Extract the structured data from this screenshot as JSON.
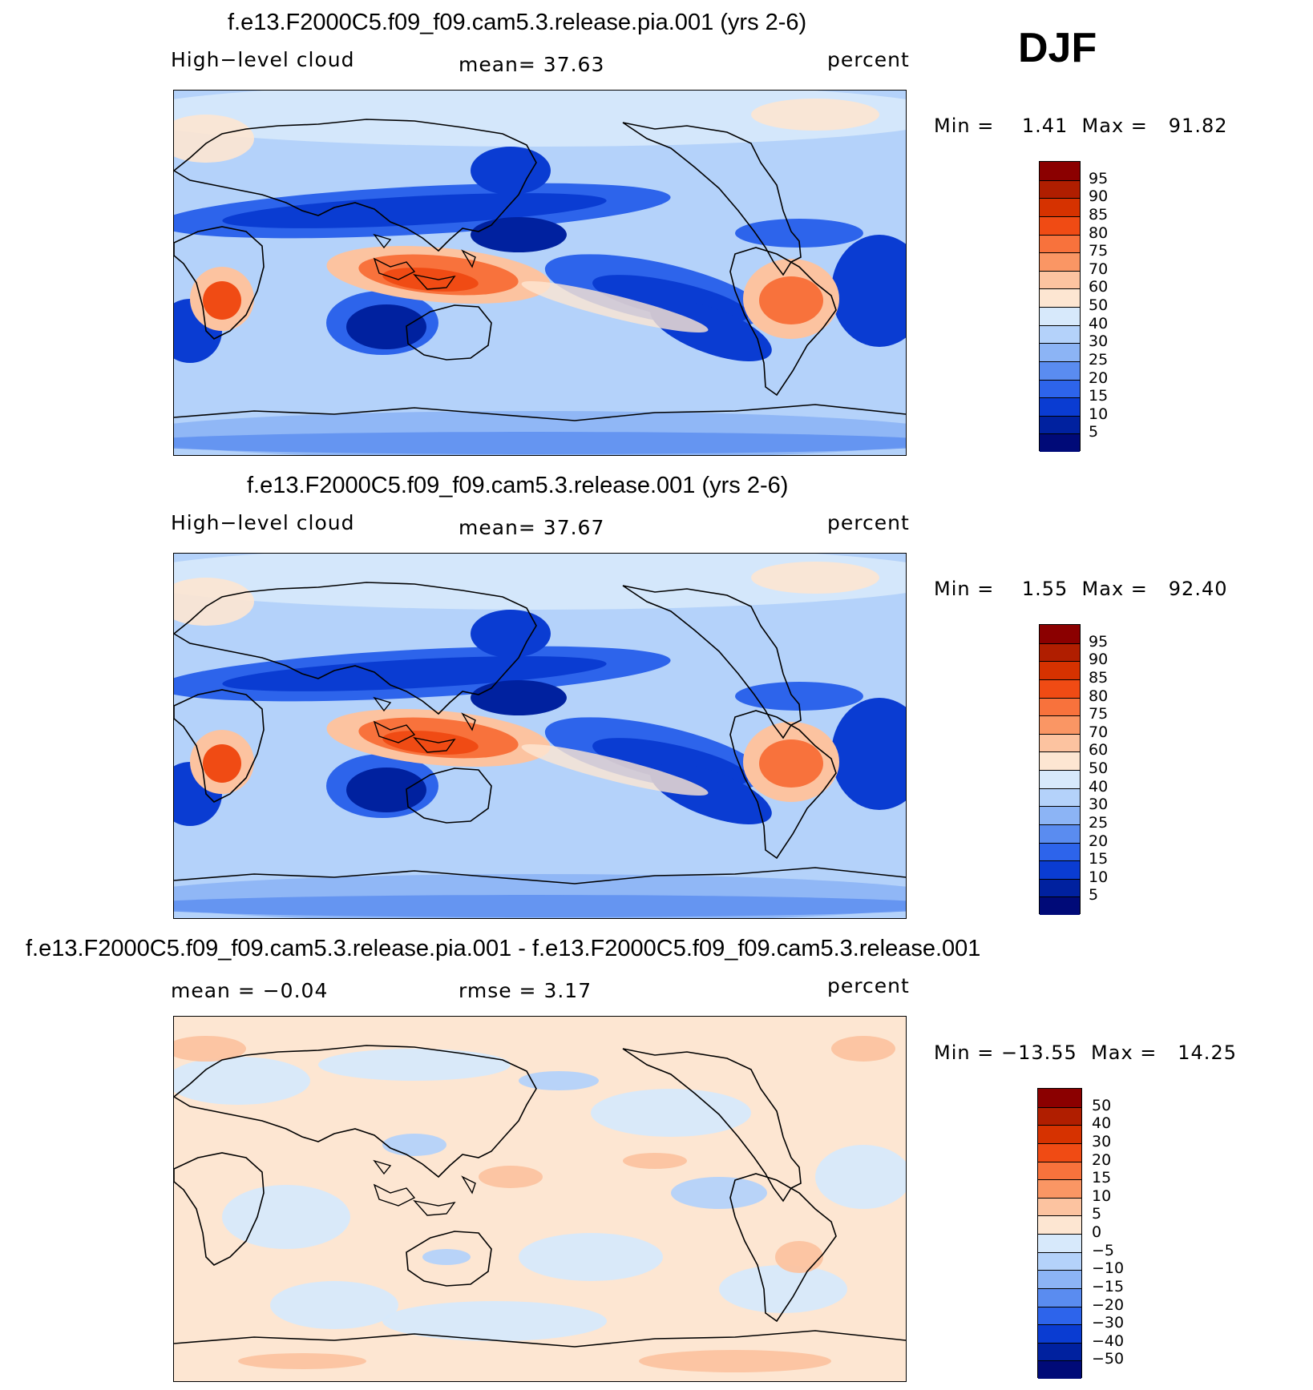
{
  "season": "DJF",
  "panels": [
    {
      "title": "f.e13.F2000C5.f09_f09.cam5.3.release.pia.001 (yrs 2-6)",
      "left_label": "High−level cloud",
      "mid_label": "mean=   37.63",
      "right_label": "percent",
      "minmax": "Min =    1.41  Max =   91.82",
      "colorbar": {
        "labels": [
          "95",
          "90",
          "85",
          "80",
          "75",
          "70",
          "60",
          "50",
          "40",
          "30",
          "25",
          "20",
          "15",
          "10",
          "5"
        ],
        "colors": [
          "#8b0000",
          "#b01e00",
          "#d63200",
          "#f04b14",
          "#f8723c",
          "#fa9664",
          "#fcc3a0",
          "#fde6d2",
          "#d7e9fb",
          "#b4d2fa",
          "#8cb4f5",
          "#5a8cf0",
          "#2d64eb",
          "#0a3cd2",
          "#00219f",
          "#000a78"
        ]
      }
    },
    {
      "title": "f.e13.F2000C5.f09_f09.cam5.3.release.001 (yrs 2-6)",
      "left_label": "High−level cloud",
      "mid_label": "mean=   37.67",
      "right_label": "percent",
      "minmax": "Min =    1.55  Max =   92.40",
      "colorbar": {
        "labels": [
          "95",
          "90",
          "85",
          "80",
          "75",
          "70",
          "60",
          "50",
          "40",
          "30",
          "25",
          "20",
          "15",
          "10",
          "5"
        ],
        "colors": [
          "#8b0000",
          "#b01e00",
          "#d63200",
          "#f04b14",
          "#f8723c",
          "#fa9664",
          "#fcc3a0",
          "#fde6d2",
          "#d7e9fb",
          "#b4d2fa",
          "#8cb4f5",
          "#5a8cf0",
          "#2d64eb",
          "#0a3cd2",
          "#00219f",
          "#000a78"
        ]
      }
    },
    {
      "title": "f.e13.F2000C5.f09_f09.cam5.3.release.pia.001 - f.e13.F2000C5.f09_f09.cam5.3.release.001",
      "left_label": "mean =   −0.04",
      "mid_label": "rmse =    3.17",
      "right_label": "percent",
      "minmax": "Min = −13.55  Max =   14.25",
      "colorbar": {
        "labels": [
          "50",
          "40",
          "30",
          "20",
          "15",
          "10",
          "5",
          "0",
          "−5",
          "−10",
          "−15",
          "−20",
          "−30",
          "−40",
          "−50"
        ],
        "colors": [
          "#8b0000",
          "#b01e00",
          "#d63200",
          "#f04b14",
          "#f8723c",
          "#fa9664",
          "#fcc3a0",
          "#fde6d2",
          "#d7e9fb",
          "#b4d2fa",
          "#8cb4f5",
          "#5a8cf0",
          "#2d64eb",
          "#0a3cd2",
          "#00219f",
          "#000a78"
        ]
      }
    }
  ]
}
